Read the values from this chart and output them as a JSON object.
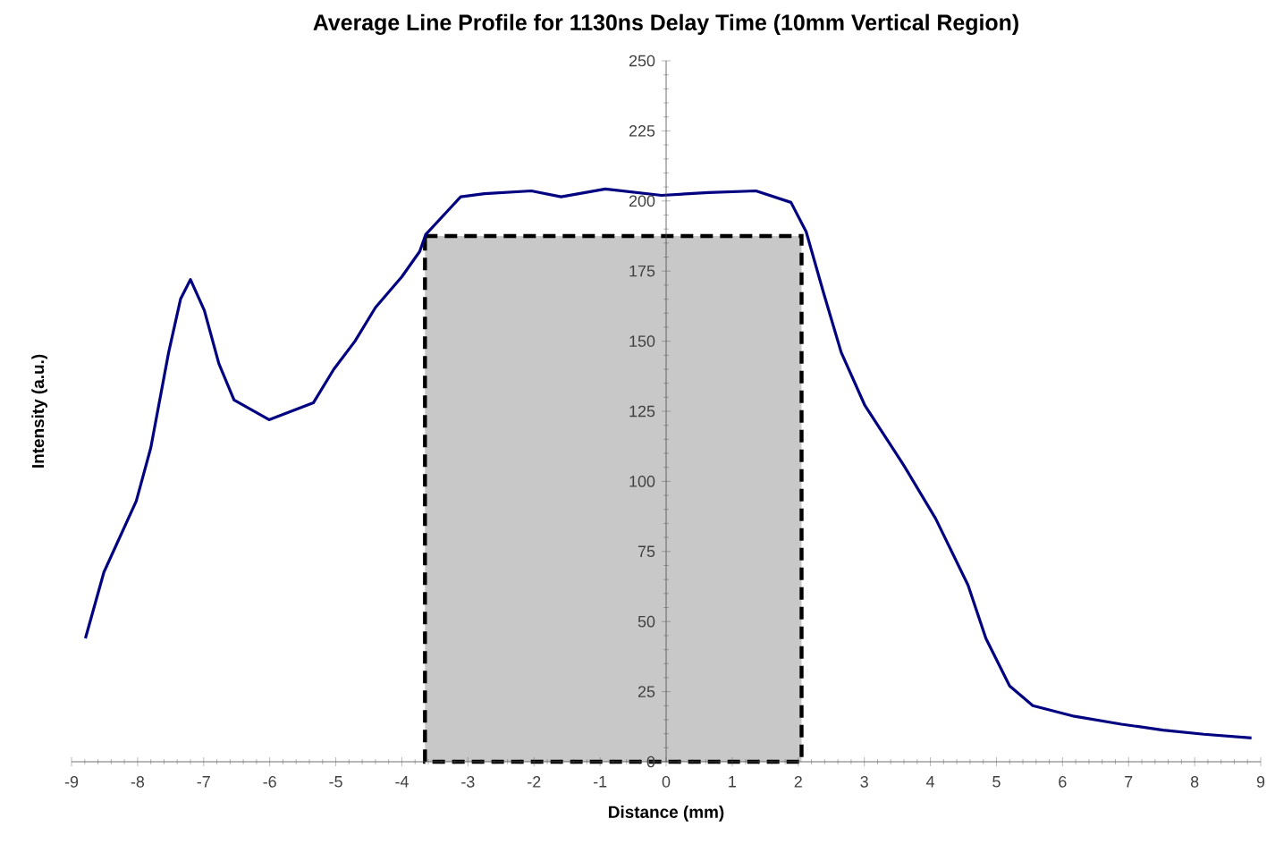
{
  "chart_data": {
    "type": "line",
    "title": "Average Line Profile for 1130ns Delay Time (10mm Vertical Region)",
    "xlabel": "Distance (mm)",
    "ylabel": "Intensity (a.u.)",
    "xlim": [
      -9,
      9
    ],
    "ylim": [
      0,
      250
    ],
    "xticks": [
      -9,
      -8,
      -7,
      -6,
      -5,
      -4,
      -3,
      -2,
      -1,
      0,
      1,
      2,
      3,
      4,
      5,
      6,
      7,
      8,
      9
    ],
    "yticks": [
      0,
      25,
      50,
      75,
      100,
      125,
      150,
      175,
      200,
      225,
      250
    ],
    "marker": "none",
    "series": [
      {
        "type": "area",
        "color": "#c8c8c8",
        "line_style": "dashed",
        "x": [
          -3.65,
          2.05
        ],
        "values": [
          187.5,
          187.5
        ]
      },
      {
        "color": "#000080",
        "line_style": "solid",
        "x": [
          -8.79,
          -8.51,
          -8.02,
          -7.8,
          -7.53,
          -7.35,
          -7.2,
          -6.99,
          -6.77,
          -6.54,
          -6.01,
          -5.34,
          -5.03,
          -4.71,
          -4.4,
          -4,
          -3.73,
          -3.64,
          -3.11,
          -2.75,
          -2.04,
          -1.59,
          -0.92,
          -0.07,
          0.64,
          1.36,
          1.89,
          2.12,
          2.38,
          2.65,
          3.01,
          3.59,
          4.08,
          4.57,
          4.84,
          5.2,
          5.55,
          6.18,
          6.89,
          7.52,
          8.14,
          8.86
        ],
        "values": [
          44,
          67.6,
          93,
          112,
          146,
          165,
          172,
          161,
          142,
          129,
          122,
          128,
          140,
          150,
          162,
          173,
          182,
          188,
          201.5,
          202.6,
          203.6,
          201.5,
          204.3,
          202,
          203,
          203.6,
          199.5,
          189,
          167.5,
          146,
          127,
          106,
          86.7,
          63,
          44,
          27,
          20,
          16.2,
          13.4,
          11.3,
          9.8,
          8.5
        ]
      }
    ]
  }
}
